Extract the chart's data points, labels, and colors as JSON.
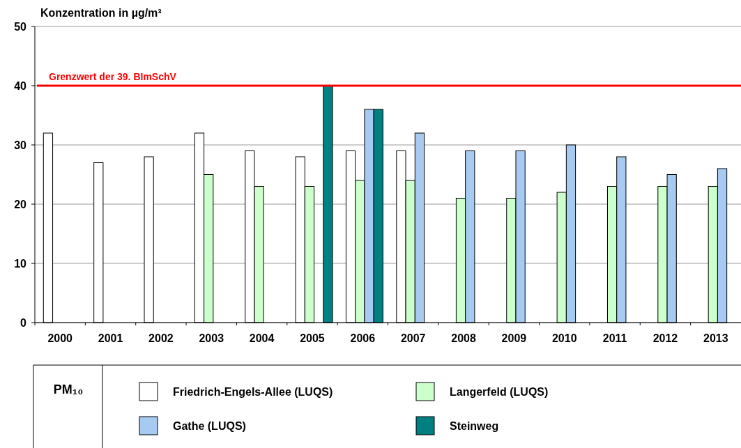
{
  "chart_data": {
    "type": "bar",
    "ylabel": "Konzentration in µg/m³",
    "legend_title": "PM₁₀",
    "categories": [
      "2000",
      "2001",
      "2002",
      "2003",
      "2004",
      "2005",
      "2006",
      "2007",
      "2008",
      "2009",
      "2010",
      "2011",
      "2012",
      "2013"
    ],
    "series": [
      {
        "name": "Friedrich-Engels-Allee (LUQS)",
        "color": "#ffffff",
        "values": [
          32,
          27,
          28,
          32,
          29,
          28,
          29,
          29,
          null,
          null,
          null,
          null,
          null,
          null
        ]
      },
      {
        "name": "Langerfeld (LUQS)",
        "color": "#ccffcc",
        "values": [
          null,
          null,
          null,
          25,
          23,
          23,
          24,
          24,
          21,
          21,
          22,
          23,
          23,
          23
        ]
      },
      {
        "name": "Gathe (LUQS)",
        "color": "#a6caf0",
        "values": [
          null,
          null,
          null,
          null,
          null,
          null,
          36,
          32,
          29,
          29,
          30,
          28,
          25,
          26
        ]
      },
      {
        "name": "Steinweg",
        "color": "#008080",
        "values": [
          null,
          null,
          null,
          null,
          null,
          40,
          36,
          null,
          null,
          null,
          null,
          null,
          null,
          null
        ]
      }
    ],
    "ylim": [
      0,
      50
    ],
    "yticks": [
      0,
      10,
      20,
      30,
      40,
      50
    ],
    "grid": "y",
    "legend": "bottom",
    "ref_lines": [
      {
        "axis": "y",
        "value": 40,
        "label": "Grenzwert der 39. BImSchV",
        "color": "#ff0000"
      }
    ]
  }
}
